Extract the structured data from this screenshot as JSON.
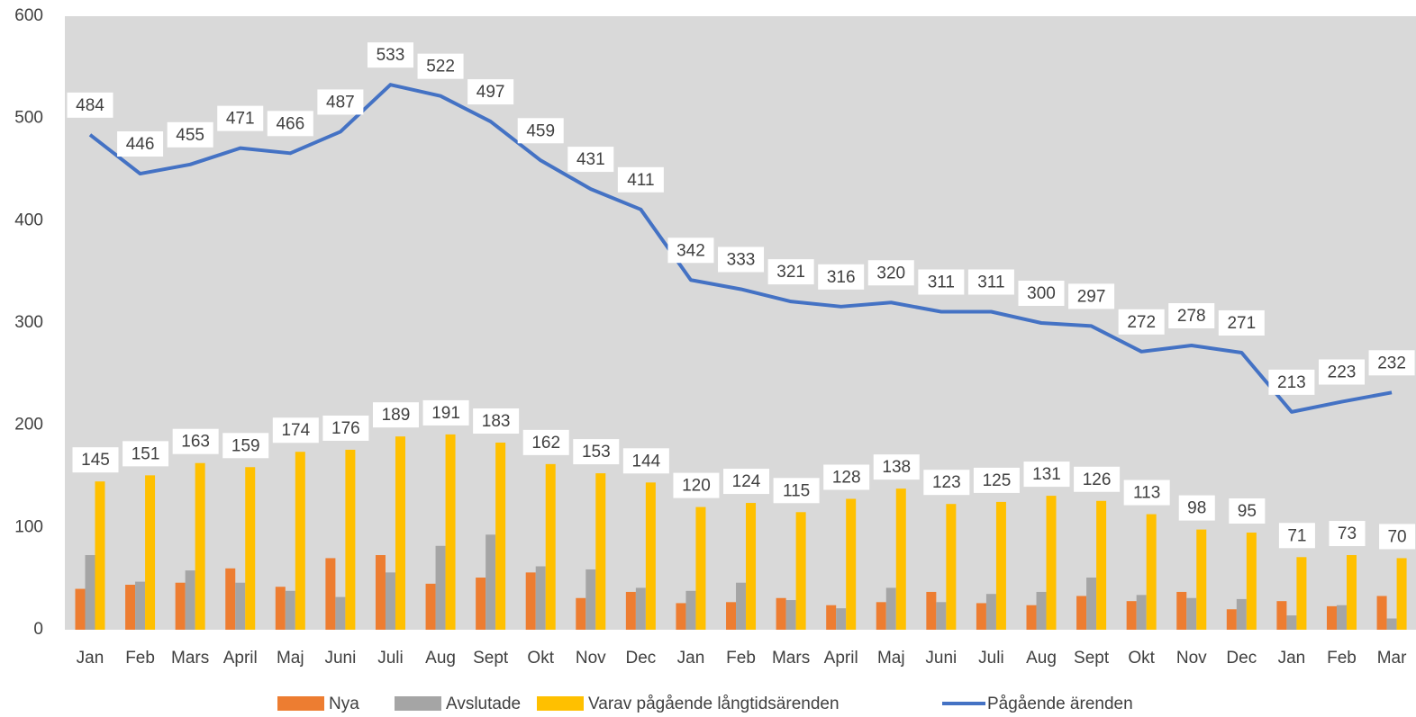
{
  "chart_data": {
    "type": "bar_line",
    "categories": [
      "Jan",
      "Feb",
      "Mars",
      "April",
      "Maj",
      "Juni",
      "Juli",
      "Aug",
      "Sept",
      "Okt",
      "Nov",
      "Dec",
      "Jan",
      "Feb",
      "Mars",
      "April",
      "Maj",
      "Juni",
      "Juli",
      "Aug",
      "Sept",
      "Okt",
      "Nov",
      "Dec",
      "Jan",
      "Feb",
      "Mar"
    ],
    "series": [
      {
        "name": "Nya",
        "type": "bar",
        "color": "#ed7d31",
        "values": [
          40,
          44,
          46,
          60,
          42,
          70,
          73,
          45,
          51,
          56,
          31,
          37,
          26,
          27,
          31,
          24,
          27,
          37,
          26,
          24,
          33,
          28,
          37,
          20,
          28,
          23,
          33
        ]
      },
      {
        "name": "Avslutade",
        "type": "bar",
        "color": "#a5a5a5",
        "values": [
          73,
          47,
          58,
          46,
          38,
          32,
          56,
          82,
          93,
          62,
          59,
          41,
          38,
          46,
          29,
          21,
          41,
          27,
          35,
          37,
          51,
          34,
          31,
          30,
          14,
          24,
          11
        ]
      },
      {
        "name": "Varav pågående långtidsärenden",
        "type": "bar",
        "color": "#ffc000",
        "data_labels": true,
        "values": [
          145,
          151,
          163,
          159,
          174,
          176,
          189,
          191,
          183,
          162,
          153,
          144,
          120,
          124,
          115,
          128,
          138,
          123,
          125,
          131,
          126,
          113,
          98,
          95,
          71,
          73,
          70
        ]
      },
      {
        "name": "Pågående ärenden",
        "type": "line",
        "color": "#4472c4",
        "data_labels": true,
        "values": [
          484,
          446,
          455,
          471,
          466,
          487,
          533,
          522,
          497,
          459,
          431,
          411,
          342,
          333,
          321,
          316,
          320,
          311,
          311,
          300,
          297,
          272,
          278,
          271,
          213,
          223,
          232
        ]
      }
    ],
    "ylim": [
      0,
      600
    ],
    "yticks": [
      0,
      100,
      200,
      300,
      400,
      500,
      600
    ],
    "legend": "bottom"
  }
}
